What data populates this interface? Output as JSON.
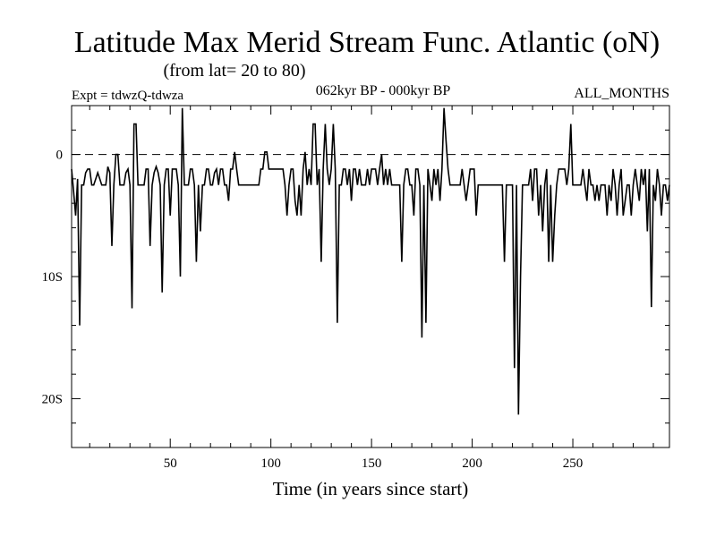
{
  "chart_data": {
    "type": "line",
    "title": "Latitude Max Merid Stream Func. Atlantic (oN)",
    "subtitle": "(from lat= 20 to 80)",
    "left_label": "Expt = tdwzQ-tdwza",
    "center_label": "062kyr BP - 000kyr BP",
    "right_label": "ALL_MONTHS",
    "xlabel": "Time (in years since start)",
    "ylabel": "",
    "xlim": [
      1,
      298
    ],
    "ylim": [
      24,
      -4
    ],
    "x_ticks": [
      {
        "value": 50,
        "label": "50"
      },
      {
        "value": 100,
        "label": "100"
      },
      {
        "value": 150,
        "label": "150"
      },
      {
        "value": 200,
        "label": "200"
      },
      {
        "value": 250,
        "label": "250"
      }
    ],
    "y_ticks": [
      {
        "value": 0,
        "label": "0"
      },
      {
        "value": 10,
        "label": "10S"
      },
      {
        "value": 20,
        "label": "20S"
      }
    ],
    "reference_line": {
      "value": 0,
      "style": "dashed"
    },
    "series": [
      {
        "color": "#000000",
        "points": [
          [
            1,
            1.2
          ],
          [
            2,
            3.0
          ],
          [
            3,
            5.0
          ],
          [
            4,
            2.0
          ],
          [
            5,
            14.0
          ],
          [
            6,
            2.5
          ],
          [
            7,
            2.5
          ],
          [
            8,
            1.5
          ],
          [
            9,
            1.2
          ],
          [
            10,
            1.2
          ],
          [
            11,
            2.5
          ],
          [
            12,
            2.5
          ],
          [
            13,
            2.0
          ],
          [
            14,
            1.5
          ],
          [
            15,
            2.0
          ],
          [
            16,
            2.5
          ],
          [
            17,
            2.5
          ],
          [
            18,
            2.5
          ],
          [
            19,
            1.0
          ],
          [
            20,
            1.5
          ],
          [
            21,
            7.5
          ],
          [
            22,
            2.5
          ],
          [
            23,
            0.0
          ],
          [
            24,
            0.0
          ],
          [
            25,
            2.5
          ],
          [
            26,
            2.5
          ],
          [
            27,
            2.5
          ],
          [
            28,
            1.5
          ],
          [
            29,
            1.2
          ],
          [
            30,
            2.5
          ],
          [
            31,
            12.6
          ],
          [
            32,
            -2.5
          ],
          [
            33,
            -2.5
          ],
          [
            34,
            2.5
          ],
          [
            35,
            2.5
          ],
          [
            36,
            2.5
          ],
          [
            37,
            2.5
          ],
          [
            38,
            1.2
          ],
          [
            39,
            1.2
          ],
          [
            40,
            7.5
          ],
          [
            41,
            2.5
          ],
          [
            42,
            1.5
          ],
          [
            43,
            1.0
          ],
          [
            44,
            1.5
          ],
          [
            45,
            2.5
          ],
          [
            46,
            11.3
          ],
          [
            47,
            2.5
          ],
          [
            48,
            1.2
          ],
          [
            49,
            1.2
          ],
          [
            50,
            5.0
          ],
          [
            51,
            1.2
          ],
          [
            52,
            1.2
          ],
          [
            53,
            1.2
          ],
          [
            54,
            2.5
          ],
          [
            55,
            10.0
          ],
          [
            56,
            -3.8
          ],
          [
            57,
            2.5
          ],
          [
            58,
            2.5
          ],
          [
            59,
            2.5
          ],
          [
            60,
            1.2
          ],
          [
            61,
            1.2
          ],
          [
            62,
            2.5
          ],
          [
            63,
            8.8
          ],
          [
            64,
            2.5
          ],
          [
            65,
            6.3
          ],
          [
            66,
            2.5
          ],
          [
            67,
            2.5
          ],
          [
            68,
            1.2
          ],
          [
            69,
            1.2
          ],
          [
            70,
            2.5
          ],
          [
            71,
            2.5
          ],
          [
            72,
            1.5
          ],
          [
            73,
            1.2
          ],
          [
            74,
            2.5
          ],
          [
            75,
            1.2
          ],
          [
            76,
            1.2
          ],
          [
            77,
            2.5
          ],
          [
            78,
            2.5
          ],
          [
            79,
            3.8
          ],
          [
            80,
            1.2
          ],
          [
            81,
            1.2
          ],
          [
            82,
            -0.2
          ],
          [
            83,
            1.2
          ],
          [
            84,
            2.5
          ],
          [
            85,
            2.5
          ],
          [
            86,
            2.5
          ],
          [
            87,
            2.5
          ],
          [
            88,
            2.5
          ],
          [
            89,
            2.5
          ],
          [
            90,
            2.5
          ],
          [
            91,
            2.5
          ],
          [
            92,
            2.5
          ],
          [
            93,
            2.5
          ],
          [
            94,
            2.5
          ],
          [
            95,
            1.2
          ],
          [
            96,
            1.2
          ],
          [
            97,
            -0.2
          ],
          [
            98,
            -0.2
          ],
          [
            99,
            1.2
          ],
          [
            100,
            1.2
          ],
          [
            101,
            1.2
          ],
          [
            102,
            1.2
          ],
          [
            103,
            1.2
          ],
          [
            104,
            1.2
          ],
          [
            105,
            1.2
          ],
          [
            106,
            1.2
          ],
          [
            107,
            2.5
          ],
          [
            108,
            5.0
          ],
          [
            109,
            2.5
          ],
          [
            110,
            1.2
          ],
          [
            111,
            1.2
          ],
          [
            112,
            3.8
          ],
          [
            113,
            5.0
          ],
          [
            114,
            2.5
          ],
          [
            115,
            5.0
          ],
          [
            116,
            1.2
          ],
          [
            117,
            -0.2
          ],
          [
            118,
            2.5
          ],
          [
            119,
            1.2
          ],
          [
            120,
            2.5
          ],
          [
            121,
            -2.5
          ],
          [
            122,
            -2.5
          ],
          [
            123,
            2.5
          ],
          [
            124,
            1.2
          ],
          [
            125,
            8.8
          ],
          [
            126,
            1.2
          ],
          [
            127,
            -2.5
          ],
          [
            128,
            1.2
          ],
          [
            129,
            2.5
          ],
          [
            130,
            1.2
          ],
          [
            131,
            -2.5
          ],
          [
            132,
            1.2
          ],
          [
            133,
            13.8
          ],
          [
            134,
            2.5
          ],
          [
            135,
            2.5
          ],
          [
            136,
            1.2
          ],
          [
            137,
            1.2
          ],
          [
            138,
            2.5
          ],
          [
            139,
            1.2
          ],
          [
            140,
            3.8
          ],
          [
            141,
            1.2
          ],
          [
            142,
            1.2
          ],
          [
            143,
            2.5
          ],
          [
            144,
            1.2
          ],
          [
            145,
            2.5
          ],
          [
            146,
            2.5
          ],
          [
            147,
            2.5
          ],
          [
            148,
            1.2
          ],
          [
            149,
            2.5
          ],
          [
            150,
            1.2
          ],
          [
            151,
            1.2
          ],
          [
            152,
            1.2
          ],
          [
            153,
            2.5
          ],
          [
            154,
            1.2
          ],
          [
            155,
            0.0
          ],
          [
            156,
            2.5
          ],
          [
            157,
            1.2
          ],
          [
            158,
            2.5
          ],
          [
            159,
            1.2
          ],
          [
            160,
            2.5
          ],
          [
            161,
            2.5
          ],
          [
            162,
            2.5
          ],
          [
            163,
            2.5
          ],
          [
            164,
            2.5
          ],
          [
            165,
            8.8
          ],
          [
            166,
            2.5
          ],
          [
            167,
            1.2
          ],
          [
            168,
            1.2
          ],
          [
            169,
            2.5
          ],
          [
            170,
            2.5
          ],
          [
            171,
            5.0
          ],
          [
            172,
            1.2
          ],
          [
            173,
            1.2
          ],
          [
            174,
            2.5
          ],
          [
            175,
            15.0
          ],
          [
            176,
            2.5
          ],
          [
            177,
            13.8
          ],
          [
            178,
            1.2
          ],
          [
            179,
            2.5
          ],
          [
            180,
            3.8
          ],
          [
            181,
            1.2
          ],
          [
            182,
            2.5
          ],
          [
            183,
            1.2
          ],
          [
            184,
            3.8
          ],
          [
            185,
            1.2
          ],
          [
            186,
            -3.8
          ],
          [
            187,
            -1.2
          ],
          [
            188,
            1.2
          ],
          [
            189,
            2.5
          ],
          [
            190,
            2.5
          ],
          [
            191,
            2.5
          ],
          [
            192,
            2.5
          ],
          [
            193,
            2.5
          ],
          [
            194,
            2.5
          ],
          [
            195,
            1.2
          ],
          [
            196,
            2.5
          ],
          [
            197,
            3.8
          ],
          [
            198,
            2.5
          ],
          [
            199,
            1.2
          ],
          [
            200,
            1.2
          ],
          [
            201,
            1.2
          ],
          [
            202,
            5.0
          ],
          [
            203,
            2.5
          ],
          [
            204,
            2.5
          ],
          [
            205,
            2.5
          ],
          [
            206,
            2.5
          ],
          [
            207,
            2.5
          ],
          [
            208,
            2.5
          ],
          [
            209,
            2.5
          ],
          [
            210,
            2.5
          ],
          [
            211,
            2.5
          ],
          [
            212,
            2.5
          ],
          [
            213,
            2.5
          ],
          [
            214,
            2.5
          ],
          [
            215,
            2.5
          ],
          [
            216,
            8.8
          ],
          [
            217,
            2.5
          ],
          [
            218,
            2.5
          ],
          [
            219,
            2.5
          ],
          [
            220,
            2.5
          ],
          [
            221,
            17.5
          ],
          [
            222,
            2.5
          ],
          [
            223,
            21.3
          ],
          [
            224,
            10.0
          ],
          [
            225,
            2.5
          ],
          [
            226,
            2.5
          ],
          [
            227,
            2.5
          ],
          [
            228,
            2.5
          ],
          [
            229,
            1.2
          ],
          [
            230,
            3.8
          ],
          [
            231,
            1.2
          ],
          [
            232,
            1.2
          ],
          [
            233,
            5.0
          ],
          [
            234,
            2.5
          ],
          [
            235,
            6.3
          ],
          [
            236,
            2.5
          ],
          [
            237,
            1.2
          ],
          [
            238,
            8.8
          ],
          [
            239,
            2.5
          ],
          [
            240,
            8.8
          ],
          [
            241,
            5.0
          ],
          [
            242,
            2.5
          ],
          [
            243,
            1.2
          ],
          [
            244,
            1.2
          ],
          [
            245,
            1.2
          ],
          [
            246,
            1.2
          ],
          [
            247,
            2.5
          ],
          [
            248,
            1.2
          ],
          [
            249,
            -2.5
          ],
          [
            250,
            2.5
          ],
          [
            251,
            2.5
          ],
          [
            252,
            2.5
          ],
          [
            253,
            2.5
          ],
          [
            254,
            2.5
          ],
          [
            255,
            1.2
          ],
          [
            256,
            2.5
          ],
          [
            257,
            3.8
          ],
          [
            258,
            1.2
          ],
          [
            259,
            2.5
          ],
          [
            260,
            2.5
          ],
          [
            261,
            3.8
          ],
          [
            262,
            2.5
          ],
          [
            263,
            3.8
          ],
          [
            264,
            2.5
          ],
          [
            265,
            2.5
          ],
          [
            266,
            2.5
          ],
          [
            267,
            5.0
          ],
          [
            268,
            2.5
          ],
          [
            269,
            3.8
          ],
          [
            270,
            1.2
          ],
          [
            271,
            2.5
          ],
          [
            272,
            5.0
          ],
          [
            273,
            2.5
          ],
          [
            274,
            1.2
          ],
          [
            275,
            5.0
          ],
          [
            276,
            3.8
          ],
          [
            277,
            2.5
          ],
          [
            278,
            2.5
          ],
          [
            279,
            5.0
          ],
          [
            280,
            2.5
          ],
          [
            281,
            1.2
          ],
          [
            282,
            2.5
          ],
          [
            283,
            3.8
          ],
          [
            284,
            1.2
          ],
          [
            285,
            2.5
          ],
          [
            286,
            1.2
          ],
          [
            287,
            6.3
          ],
          [
            288,
            1.2
          ],
          [
            289,
            12.5
          ],
          [
            290,
            2.5
          ],
          [
            291,
            3.8
          ],
          [
            292,
            1.2
          ],
          [
            293,
            2.5
          ],
          [
            294,
            5.0
          ],
          [
            295,
            2.5
          ],
          [
            296,
            2.5
          ],
          [
            297,
            3.8
          ],
          [
            298,
            2.5
          ]
        ]
      }
    ]
  }
}
